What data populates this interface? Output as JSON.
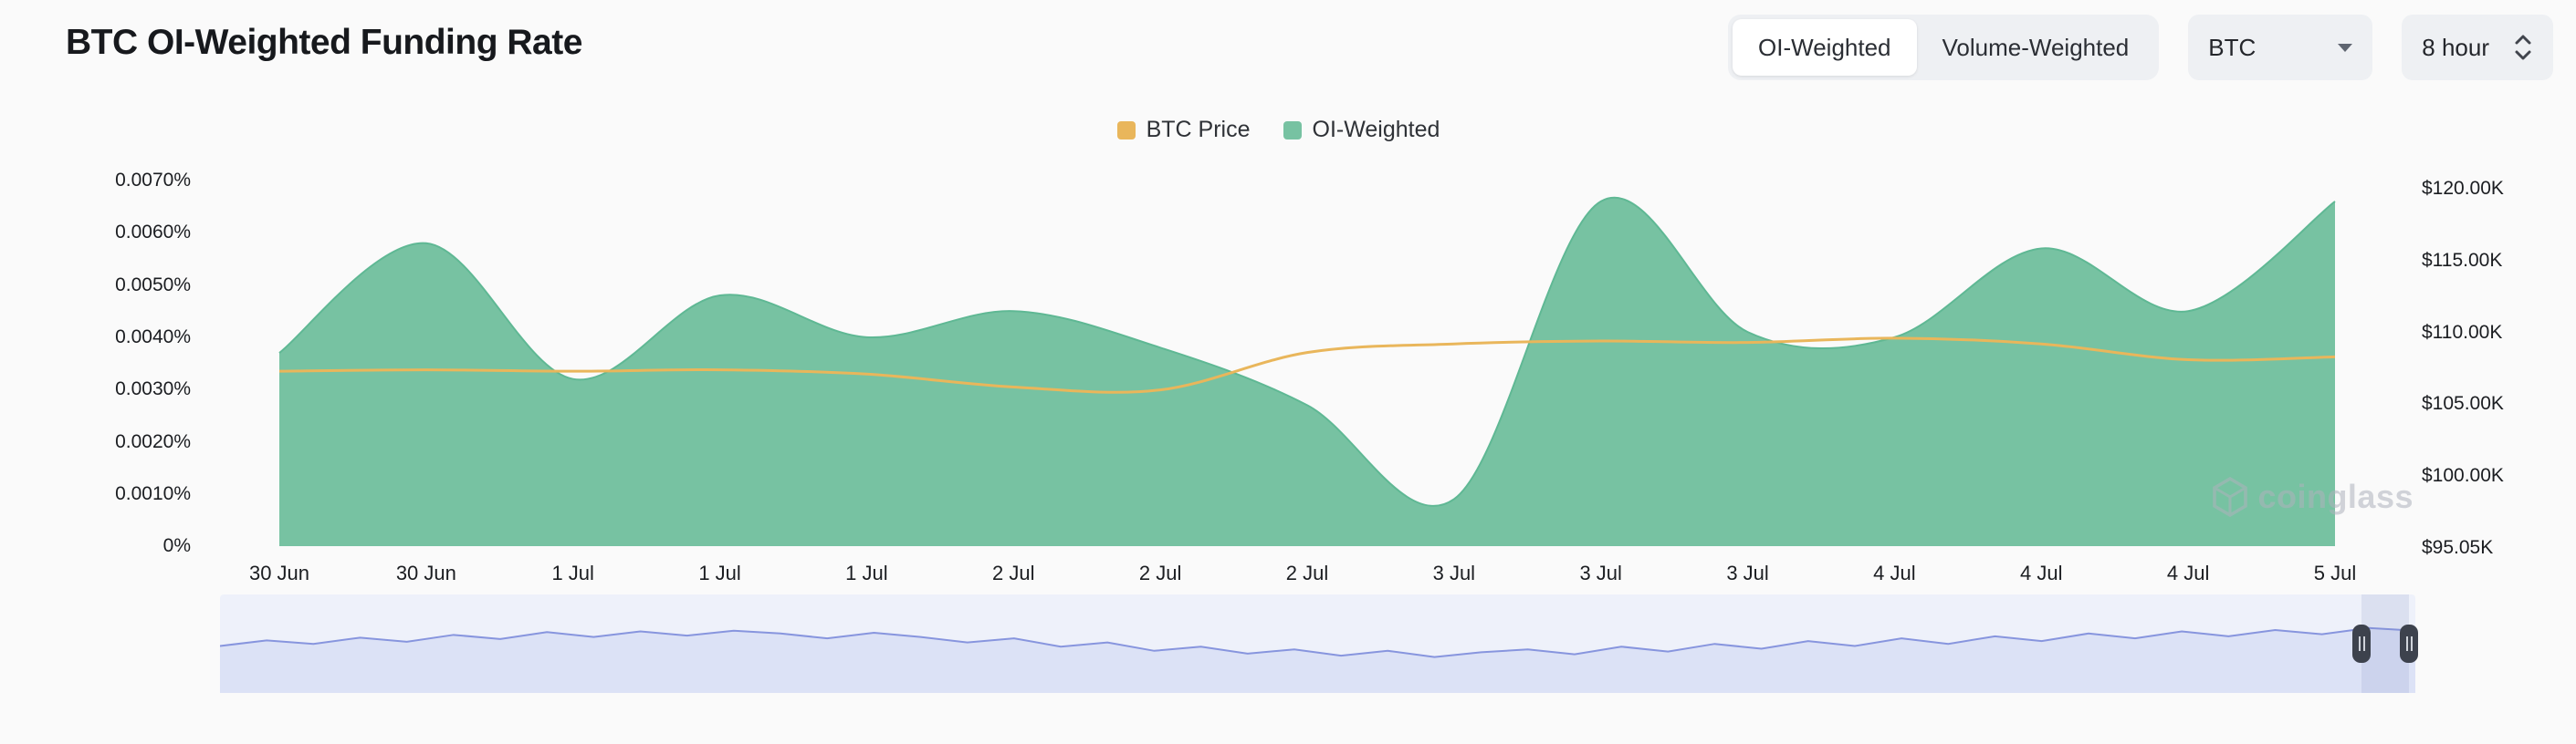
{
  "header": {
    "title": "BTC OI-Weighted Funding Rate",
    "toggle": {
      "options": [
        "OI-Weighted",
        "Volume-Weighted"
      ],
      "selected": "OI-Weighted"
    },
    "symbol_select": {
      "value": "BTC"
    },
    "interval_select": {
      "value": "8 hour"
    }
  },
  "legend": [
    {
      "label": "BTC Price",
      "color": "#E9B65B"
    },
    {
      "label": "OI-Weighted",
      "color": "#77C2A2"
    }
  ],
  "watermark": "coinglass",
  "chart_data": {
    "type": "area",
    "title": "BTC OI-Weighted Funding Rate",
    "categories": [
      "30 Jun",
      "30 Jun",
      "1 Jul",
      "1 Jul",
      "1 Jul",
      "2 Jul",
      "2 Jul",
      "2 Jul",
      "3 Jul",
      "3 Jul",
      "3 Jul",
      "4 Jul",
      "4 Jul",
      "4 Jul",
      "5 Jul"
    ],
    "series": [
      {
        "name": "OI-Weighted",
        "type": "area",
        "axis": "left",
        "unit": "%",
        "color": "#77C2A2",
        "edge_color": "#5FB894",
        "values": [
          0.0037,
          0.0058,
          0.0032,
          0.0048,
          0.004,
          0.0045,
          0.0038,
          0.0027,
          0.0009,
          0.0066,
          0.0041,
          0.004,
          0.0057,
          0.0045,
          0.0066
        ]
      },
      {
        "name": "BTC Price",
        "type": "line",
        "axis": "right",
        "unit": "$K",
        "color": "#E9B65B",
        "values": [
          107.3,
          107.4,
          107.3,
          107.4,
          107.1,
          106.2,
          106.0,
          108.6,
          109.2,
          109.4,
          109.3,
          109.6,
          109.2,
          108.1,
          108.3
        ]
      }
    ],
    "left_axis": {
      "ticks": [
        "0.0070%",
        "0.0060%",
        "0.0050%",
        "0.0040%",
        "0.0030%",
        "0.0020%",
        "0.0010%",
        "0%"
      ],
      "min": 0,
      "max": 0.007
    },
    "right_axis": {
      "ticks": [
        "$120.00K",
        "$115.00K",
        "$110.00K",
        "$105.00K",
        "$100.00K",
        "$95.05K"
      ],
      "min": 95.05,
      "max": 121.4
    },
    "grid": false,
    "legend_position": "top-center",
    "navigator": {
      "color_fill": "#dce2f6",
      "color_line": "#8795de",
      "values": [
        0.52,
        0.6,
        0.55,
        0.64,
        0.58,
        0.68,
        0.62,
        0.72,
        0.65,
        0.73,
        0.67,
        0.74,
        0.7,
        0.63,
        0.71,
        0.65,
        0.57,
        0.63,
        0.51,
        0.57,
        0.45,
        0.51,
        0.41,
        0.47,
        0.38,
        0.45,
        0.36,
        0.43,
        0.47,
        0.4,
        0.51,
        0.44,
        0.55,
        0.48,
        0.59,
        0.52,
        0.63,
        0.55,
        0.66,
        0.59,
        0.7,
        0.63,
        0.73,
        0.66,
        0.75,
        0.69,
        0.78,
        0.74
      ]
    }
  }
}
